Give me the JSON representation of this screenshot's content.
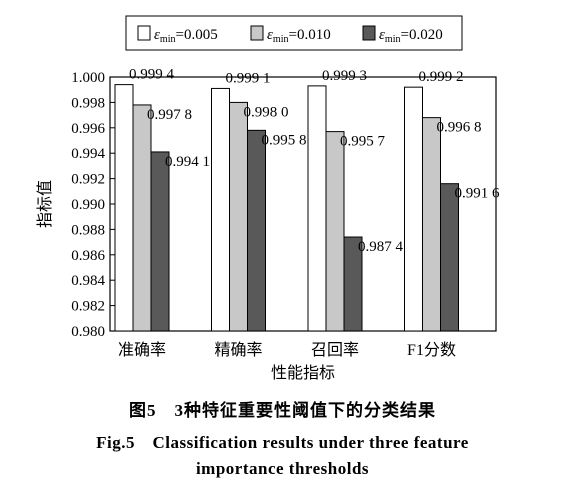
{
  "chart_data": {
    "type": "bar",
    "categories": [
      "准确率",
      "精确率",
      "召回率",
      "F1分数"
    ],
    "series": [
      {
        "name": "εmin=0.005",
        "legend_label": "=0.005",
        "color": "#ffffff",
        "values": [
          0.9994,
          0.9991,
          0.9993,
          0.9992
        ],
        "labels": [
          "0.999 4",
          "0.999 1",
          "0.999 3",
          "0.999 2"
        ]
      },
      {
        "name": "εmin=0.010",
        "legend_label": "=0.010",
        "color": "#c8c8c8",
        "values": [
          0.9978,
          0.998,
          0.9957,
          0.9968
        ],
        "labels": [
          "0.997 8",
          "0.998 0",
          "0.995 7",
          "0.996 8"
        ]
      },
      {
        "name": "εmin=0.020",
        "legend_label": "=0.020",
        "color": "#595959",
        "values": [
          0.9941,
          0.9958,
          0.9874,
          0.9916
        ],
        "labels": [
          "0.994 1",
          "0.995 8",
          "0.987 4",
          "0.991 6"
        ]
      }
    ],
    "legend_symbol": "ε",
    "legend_subscript": "min",
    "xlabel": "性能指标",
    "ylabel": "指标值",
    "ylim": [
      0.98,
      1.0
    ],
    "yticks": [
      "0.980",
      "0.982",
      "0.984",
      "0.986",
      "0.988",
      "0.990",
      "0.992",
      "0.994",
      "0.996",
      "0.998",
      "1.000"
    ],
    "grid": false,
    "legend_position": "top"
  },
  "caption": {
    "zh": "图5　3种特征重要性阈值下的分类结果",
    "en_line1": "Fig.5　Classification results under three feature",
    "en_line2": "importance thresholds"
  }
}
